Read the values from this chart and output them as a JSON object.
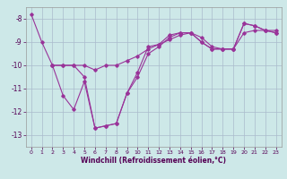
{
  "xlabel": "Windchill (Refroidissement éolien,°C)",
  "background_color": "#cde8e8",
  "line_color": "#993399",
  "grid_color": "#aabbcc",
  "xlim": [
    -0.5,
    23.5
  ],
  "ylim": [
    -13.5,
    -7.5
  ],
  "yticks": [
    -8,
    -9,
    -10,
    -11,
    -12,
    -13
  ],
  "xticks": [
    0,
    1,
    2,
    3,
    4,
    5,
    6,
    7,
    8,
    9,
    10,
    11,
    12,
    13,
    14,
    15,
    16,
    17,
    18,
    19,
    20,
    21,
    22,
    23
  ],
  "s1_x": [
    0,
    1,
    2,
    3,
    4,
    5,
    6,
    7,
    8,
    9,
    10,
    11,
    12,
    13,
    14,
    15,
    16,
    17,
    18,
    19,
    20,
    21,
    22,
    23
  ],
  "s1_y": [
    -7.8,
    -9.0,
    -10.0,
    -11.3,
    -11.9,
    -10.7,
    -12.7,
    -12.6,
    -12.5,
    -11.2,
    -10.3,
    -9.2,
    -9.1,
    -8.7,
    -8.6,
    -8.6,
    -9.0,
    -9.3,
    -9.3,
    -9.3,
    -8.2,
    -8.3,
    -8.5,
    -8.6
  ],
  "s2_x": [
    2,
    3,
    4,
    5,
    6,
    7,
    8,
    9,
    10,
    11,
    12,
    13,
    14,
    15,
    16,
    17,
    18,
    19,
    20,
    21,
    22,
    23
  ],
  "s2_y": [
    -10.0,
    -10.0,
    -10.0,
    -10.5,
    -12.7,
    -12.6,
    -12.5,
    -11.2,
    -10.5,
    -9.5,
    -9.2,
    -8.8,
    -8.6,
    -8.6,
    -9.0,
    -9.3,
    -9.3,
    -9.3,
    -8.2,
    -8.3,
    -8.5,
    -8.6
  ],
  "s3_x": [
    2,
    3,
    4,
    5,
    6,
    7,
    8,
    9,
    10,
    11,
    12,
    13,
    14,
    15,
    16,
    17,
    18,
    19,
    20,
    21,
    22,
    23
  ],
  "s3_y": [
    -10.0,
    -10.0,
    -10.0,
    -10.0,
    -10.2,
    -10.0,
    -10.0,
    -9.8,
    -9.6,
    -9.3,
    -9.1,
    -8.9,
    -8.7,
    -8.6,
    -8.8,
    -9.2,
    -9.3,
    -9.3,
    -8.6,
    -8.5,
    -8.5,
    -8.5
  ]
}
